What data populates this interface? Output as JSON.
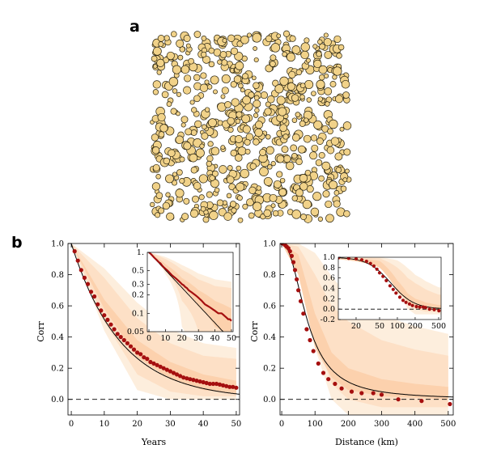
{
  "panel_labels": {
    "a": "a",
    "b": "b"
  },
  "colors": {
    "band_outer": "#fdeedd",
    "band_middle": "#fde0c6",
    "band_inner": "#fcd1ad",
    "points": "#a50f0f",
    "fit_line": "#000000",
    "zero_line": "#000000",
    "bubble_fill": "#f1d289",
    "bubble_edge": "#2a2410"
  },
  "chart_data": [
    {
      "id": "a",
      "type": "scatter",
      "title": "",
      "note": "random spatial field of circles (points of varying size)",
      "n_points": 700,
      "size_range": [
        2.5,
        5.5
      ]
    },
    {
      "id": "b-left",
      "type": "scatter",
      "title": "",
      "xlabel": "Years",
      "ylabel": "Corr",
      "xlim": [
        -1,
        51
      ],
      "ylim": [
        -0.1,
        1.0
      ],
      "xticks": [
        "0",
        "10",
        "20",
        "30",
        "40",
        "50"
      ],
      "yticks": [
        "0.0",
        "0.2",
        "0.4",
        "0.6",
        "0.8",
        "1.0"
      ],
      "x": [
        1,
        2,
        3,
        4,
        5,
        6,
        7,
        8,
        9,
        10,
        11,
        12,
        13,
        14,
        15,
        16,
        17,
        18,
        19,
        20,
        21,
        22,
        23,
        24,
        25,
        26,
        27,
        28,
        29,
        30,
        31,
        32,
        33,
        34,
        35,
        36,
        37,
        38,
        39,
        40,
        41,
        42,
        43,
        44,
        45,
        46,
        47,
        48,
        49,
        50
      ],
      "y": [
        0.95,
        0.89,
        0.83,
        0.78,
        0.74,
        0.69,
        0.66,
        0.61,
        0.57,
        0.54,
        0.51,
        0.48,
        0.45,
        0.42,
        0.4,
        0.38,
        0.36,
        0.34,
        0.32,
        0.3,
        0.29,
        0.27,
        0.26,
        0.24,
        0.23,
        0.22,
        0.21,
        0.2,
        0.19,
        0.18,
        0.17,
        0.16,
        0.15,
        0.14,
        0.135,
        0.13,
        0.125,
        0.12,
        0.115,
        0.11,
        0.105,
        0.1,
        0.1,
        0.1,
        0.095,
        0.09,
        0.085,
        0.08,
        0.08,
        0.075
      ],
      "fit": {
        "label": "",
        "amplitude": 1.0,
        "tau": 15.0
      },
      "bands": [
        {
          "x": [
            0,
            10,
            20,
            30,
            40,
            50
          ],
          "upper": [
            1.0,
            0.84,
            0.62,
            0.45,
            0.36,
            0.33
          ],
          "lower": [
            1.0,
            0.44,
            0.06,
            0.0,
            0.0,
            0.0
          ]
        },
        {
          "x": [
            0,
            10,
            20,
            30,
            40,
            50
          ],
          "upper": [
            1.0,
            0.78,
            0.52,
            0.36,
            0.28,
            0.26
          ],
          "lower": [
            1.0,
            0.5,
            0.16,
            0.05,
            0.02,
            0.02
          ]
        },
        {
          "x": [
            0,
            10,
            20,
            30,
            40,
            50
          ],
          "upper": [
            1.0,
            0.64,
            0.38,
            0.24,
            0.16,
            0.12
          ],
          "lower": [
            1.0,
            0.58,
            0.27,
            0.13,
            0.06,
            0.04
          ]
        }
      ],
      "inset": {
        "type": "line",
        "yscale": "log",
        "xlim": [
          -1,
          51
        ],
        "ylim": [
          0.05,
          1.0
        ],
        "xticks": [
          "0",
          "10",
          "20",
          "30",
          "40",
          "50"
        ],
        "yticks": [
          "1.",
          "0.5",
          "0.3",
          "0.2",
          "0.1",
          "0.05"
        ]
      }
    },
    {
      "id": "b-right",
      "type": "scatter",
      "title": "",
      "xlabel": "Distance (km)",
      "ylabel": "Corr",
      "xlim": [
        -5,
        515
      ],
      "ylim": [
        -0.1,
        1.0
      ],
      "xticks": [
        "0",
        "100",
        "200",
        "300",
        "400",
        "500"
      ],
      "yticks": [
        "0.0",
        "0.2",
        "0.4",
        "0.6",
        "0.8",
        "1.0"
      ],
      "x": [
        2,
        5,
        10,
        15,
        20,
        25,
        30,
        35,
        40,
        45,
        50,
        57,
        65,
        75,
        85,
        95,
        110,
        125,
        140,
        160,
        180,
        210,
        240,
        275,
        300,
        350,
        420,
        505
      ],
      "y": [
        1.0,
        1.0,
        0.99,
        0.98,
        0.97,
        0.95,
        0.92,
        0.88,
        0.83,
        0.77,
        0.7,
        0.63,
        0.55,
        0.45,
        0.38,
        0.31,
        0.23,
        0.17,
        0.13,
        0.1,
        0.07,
        0.05,
        0.04,
        0.04,
        0.03,
        0.0,
        -0.01,
        -0.03
      ],
      "bands": [
        {
          "x": [
            0,
            50,
            100,
            150,
            200,
            300,
            400,
            500
          ],
          "upper": [
            1.0,
            1.0,
            0.94,
            0.79,
            0.66,
            0.54,
            0.47,
            0.42
          ],
          "lower": [
            1.0,
            0.92,
            0.33,
            0.0,
            -0.1,
            -0.1,
            -0.1,
            -0.1
          ]
        },
        {
          "x": [
            0,
            50,
            100,
            150,
            200,
            300,
            400,
            500
          ],
          "upper": [
            1.0,
            0.98,
            0.8,
            0.6,
            0.5,
            0.38,
            0.32,
            0.28
          ],
          "lower": [
            1.0,
            0.86,
            0.43,
            0.1,
            0.0,
            -0.05,
            -0.05,
            -0.05
          ]
        },
        {
          "x": [
            0,
            50,
            100,
            150,
            200,
            300,
            400,
            500
          ],
          "upper": [
            1.0,
            0.93,
            0.55,
            0.3,
            0.2,
            0.13,
            0.1,
            0.08
          ],
          "lower": [
            1.0,
            0.8,
            0.33,
            0.14,
            0.06,
            0.02,
            0.01,
            0.0
          ]
        }
      ],
      "inset": {
        "type": "line",
        "xscale": "log",
        "xlim": [
          10,
          550
        ],
        "ylim": [
          -0.2,
          1.0
        ],
        "xticks": [
          "20",
          "50",
          "100",
          "200",
          "500"
        ],
        "yticks": [
          "1.0",
          "0.8",
          "0.6",
          "0.4",
          "0.2",
          "0.0",
          "-0.2"
        ]
      }
    }
  ]
}
